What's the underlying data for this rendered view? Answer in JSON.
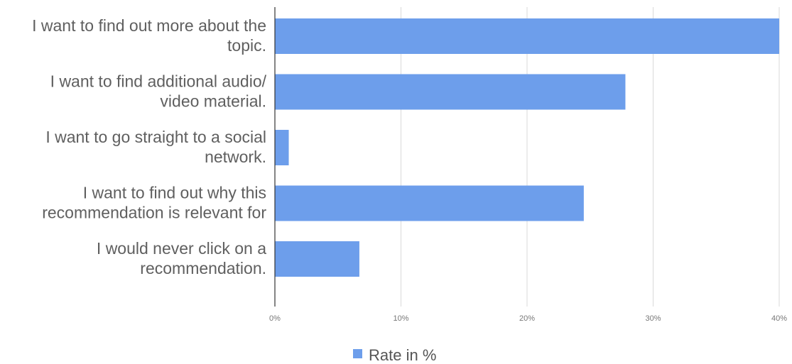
{
  "chart_data": {
    "type": "bar",
    "orientation": "horizontal",
    "categories": [
      [
        "I want to find out more about the",
        "topic."
      ],
      [
        "I want to find additional audio/",
        "video material."
      ],
      [
        "I want to go straight to a social",
        "network."
      ],
      [
        "I want to find out why this",
        "recommendation is relevant for"
      ],
      [
        "I would never click on a",
        "recommendation."
      ]
    ],
    "series": [
      {
        "name": "Rate in %",
        "values": [
          40,
          27.8,
          1.1,
          24.5,
          6.7
        ]
      }
    ],
    "xlim": [
      0,
      40
    ],
    "x_ticks": [
      0,
      10,
      20,
      30,
      40
    ],
    "x_tick_labels": [
      "0%",
      "10%",
      "20%",
      "30%",
      "40%"
    ],
    "grid": true,
    "legend_position": "bottom",
    "colors": {
      "bar": "#6d9eeb"
    }
  }
}
